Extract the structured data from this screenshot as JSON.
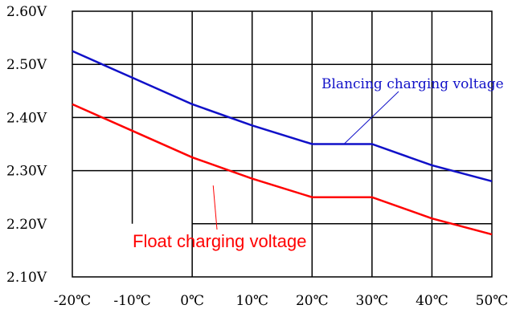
{
  "chart_data": {
    "type": "line",
    "x": [
      -20,
      -10,
      0,
      10,
      20,
      30,
      40,
      50
    ],
    "x_tick_labels": [
      "-20℃",
      "-10℃",
      "0℃",
      "10℃",
      "20℃",
      "30℃",
      "40℃",
      "50℃"
    ],
    "y_tick_labels": [
      "2.60V",
      "2.50V",
      "2.40V",
      "2.30V",
      "2.20V",
      "2.10V"
    ],
    "y_ticks": [
      2.6,
      2.5,
      2.4,
      2.3,
      2.2,
      2.1
    ],
    "xlim": [
      -20,
      50
    ],
    "ylim": [
      2.1,
      2.6
    ],
    "grid": true,
    "series": [
      {
        "name": "Blancing charging voltage",
        "color": "#1010c8",
        "values": [
          2.525,
          2.475,
          2.425,
          2.385,
          2.35,
          2.35,
          2.31,
          2.28
        ]
      },
      {
        "name": "Float charging voltage",
        "color": "#ff0000",
        "values": [
          2.425,
          2.375,
          2.325,
          2.285,
          2.25,
          2.25,
          2.21,
          2.18
        ]
      }
    ]
  }
}
